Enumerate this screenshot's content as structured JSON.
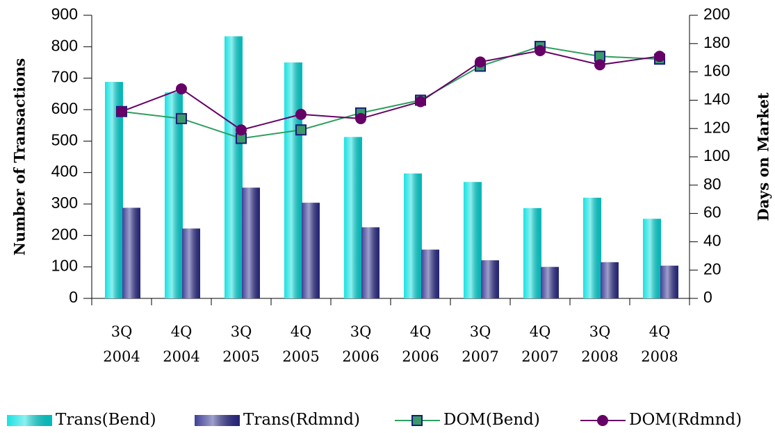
{
  "chart_data": {
    "type": "bar-line",
    "categories": [
      "3Q 2004",
      "4Q 2004",
      "3Q 2005",
      "4Q 2005",
      "3Q 2006",
      "4Q 2006",
      "3Q 2007",
      "4Q 2007",
      "3Q 2008",
      "4Q 2008"
    ],
    "ylabel": "Number of Transactions",
    "y2label": "Days on Market",
    "ylim": [
      0,
      900
    ],
    "yticks": [
      0,
      100,
      200,
      300,
      400,
      500,
      600,
      700,
      800,
      900
    ],
    "y2lim": [
      0,
      200
    ],
    "y2ticks": [
      0,
      20,
      40,
      60,
      80,
      100,
      120,
      140,
      160,
      180,
      200
    ],
    "series": [
      {
        "name": "Trans(Bend)",
        "type": "bar",
        "color": "#00dede",
        "values": [
          688,
          655,
          833,
          750,
          513,
          397,
          370,
          287,
          320,
          253
        ]
      },
      {
        "name": "Trans(Rdmnd)",
        "type": "bar",
        "color": "#2b2b8c",
        "values": [
          288,
          222,
          352,
          304,
          226,
          155,
          121,
          100,
          115,
          104
        ]
      },
      {
        "name": "DOM(Bend)",
        "type": "line",
        "axis": "y2",
        "color": "#2e9e5e",
        "marker": "square",
        "values": [
          132,
          127,
          113,
          119,
          131,
          140,
          164,
          178,
          171,
          169
        ]
      },
      {
        "name": "DOM(Rdmnd)",
        "type": "line",
        "axis": "y2",
        "color": "#660066",
        "marker": "circle",
        "values": [
          132,
          148,
          119,
          130,
          127,
          139,
          167,
          175,
          165,
          171
        ]
      }
    ],
    "legend": "bottom"
  }
}
